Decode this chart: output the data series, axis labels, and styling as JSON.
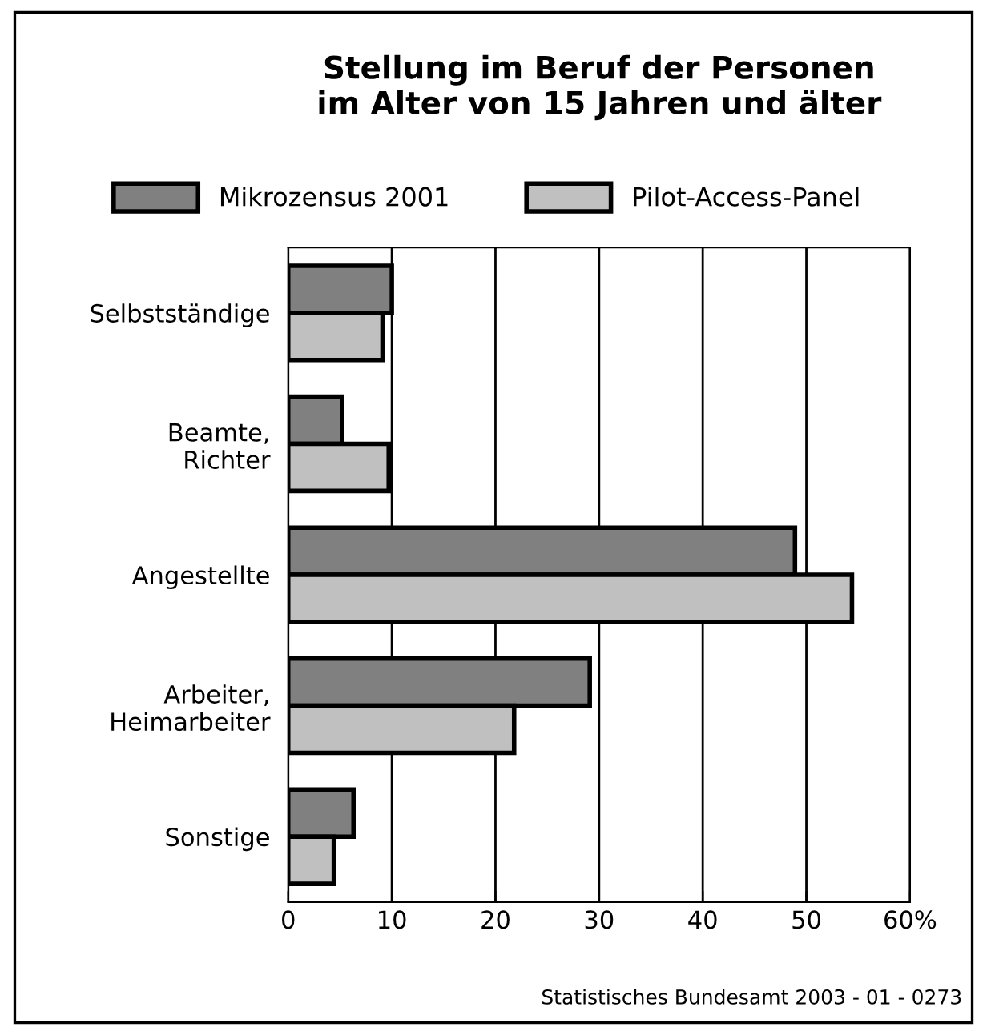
{
  "chart_data": {
    "type": "bar",
    "orientation": "horizontal",
    "title": "Stellung im Beruf der Personen\nim Alter von 15 Jahren und älter",
    "categories": [
      "Selbstständige",
      "Beamte,\nRichter",
      "Angestellte",
      "Arbeiter,\nHeimarbeiter",
      "Sonstige"
    ],
    "series": [
      {
        "name": "Mikrozensus 2001",
        "color": "#808080",
        "values": [
          10.0,
          5.2,
          48.9,
          29.1,
          6.3
        ]
      },
      {
        "name": "Pilot-Access-Panel",
        "color": "#c0c0c0",
        "values": [
          9.1,
          9.7,
          54.4,
          21.8,
          4.4
        ]
      }
    ],
    "xlim": [
      0,
      60
    ],
    "xticks": [
      0,
      10,
      20,
      30,
      40,
      50,
      {
        "value": 60,
        "label": "60%"
      }
    ],
    "grid": "x",
    "legend": "top",
    "annotations": [
      "Statistisches Bundesamt 2003 - 01 - 0273"
    ]
  }
}
